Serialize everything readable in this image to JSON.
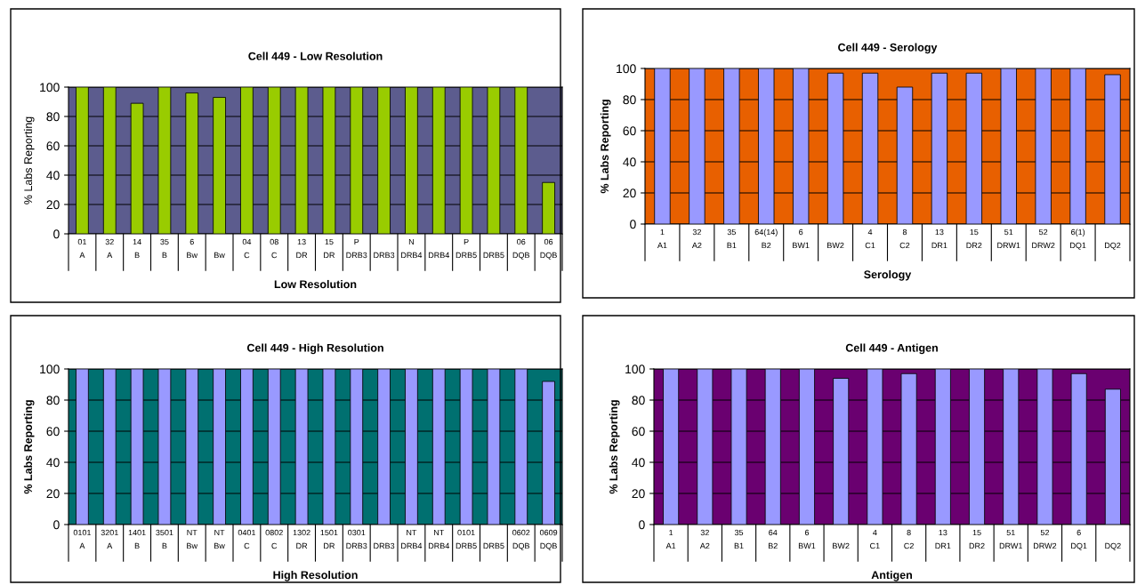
{
  "chart_data": [
    {
      "type": "bar",
      "title": "Cell 449 - Low Resolution",
      "xlabel": "Low Resolution",
      "ylabel": "% Labs Reporting",
      "color": "#99cc00",
      "categories": [
        "01\nA",
        "32\nA",
        "14\nB",
        "35\nB",
        "6\nBw",
        "\nBw",
        "04\nC",
        "08\nC",
        "13\nDR",
        "15\nDR",
        "P\nDRB3",
        "\nDRB3",
        "N\nDRB4",
        "\nDRB4",
        "P\nDRB5",
        "\nDRB5",
        "06\nDQB",
        "06\nDQB"
      ],
      "values": [
        100,
        100,
        89,
        100,
        96,
        93,
        100,
        100,
        100,
        100,
        100,
        100,
        100,
        100,
        100,
        100,
        100,
        35
      ],
      "ylim": [
        0,
        100
      ],
      "yticks": [
        0,
        20,
        40,
        60,
        80,
        100
      ],
      "grid": "y"
    },
    {
      "type": "bar",
      "title": "Cell 449 - Serology",
      "xlabel": "Serology",
      "ylabel": "% Labs Reporting",
      "color": "#9999ff",
      "categories": [
        "1\nA1",
        "32\nA2",
        "35\nB1",
        "64(14)\nB2",
        "6\nBW1",
        "\nBW2",
        "4\nC1",
        "8\nC2",
        "13\nDR1",
        "15\nDR2",
        "51\nDRW1",
        "52\nDRW2",
        "6(1)\nDQ1",
        "\nDQ2"
      ],
      "values": [
        100,
        100,
        100,
        100,
        100,
        97,
        97,
        88,
        97,
        97,
        100,
        100,
        100,
        96
      ],
      "ylim": [
        0,
        100
      ],
      "yticks": [
        0,
        20,
        40,
        60,
        80,
        100
      ],
      "grid": "y"
    },
    {
      "type": "bar",
      "title": "Cell 449 - High Resolution",
      "xlabel": "High Resolution",
      "ylabel": "% Labs Reporting",
      "color": "#9999ff",
      "categories": [
        "0101\nA",
        "3201\nA",
        "1401\nB",
        "3501\nB",
        "NT\nBw",
        "NT\nBw",
        "0401\nC",
        "0802\nC",
        "1302\nDR",
        "1501\nDR",
        "0301\nDRB3",
        "\nDRB3",
        "NT\nDRB4",
        "NT\nDRB4",
        "0101\nDRB5",
        "\nDRB5",
        "0602\nDQB",
        "0609\nDQB"
      ],
      "values": [
        100,
        100,
        100,
        100,
        100,
        100,
        100,
        100,
        100,
        100,
        100,
        100,
        100,
        100,
        100,
        100,
        100,
        92
      ],
      "ylim": [
        0,
        100
      ],
      "yticks": [
        0,
        20,
        40,
        60,
        80,
        100
      ],
      "grid": "y"
    },
    {
      "type": "bar",
      "title": "Cell 449 - Antigen",
      "xlabel": "Antigen",
      "ylabel": "% Labs Reporting",
      "color": "#9999ff",
      "categories": [
        "1\nA1",
        "32\nA2",
        "35\nB1",
        "64\nB2",
        "6\nBW1",
        "\nBW2",
        "4\nC1",
        "8\nC2",
        "13\nDR1",
        "15\nDR2",
        "51\nDRW1",
        "52\nDRW2",
        "6\nDQ1",
        "\nDQ2"
      ],
      "values": [
        100,
        100,
        100,
        100,
        100,
        94,
        100,
        97,
        100,
        100,
        100,
        100,
        97,
        87
      ],
      "ylim": [
        0,
        100
      ],
      "yticks": [
        0,
        20,
        40,
        60,
        80,
        100
      ],
      "grid": "y"
    }
  ]
}
